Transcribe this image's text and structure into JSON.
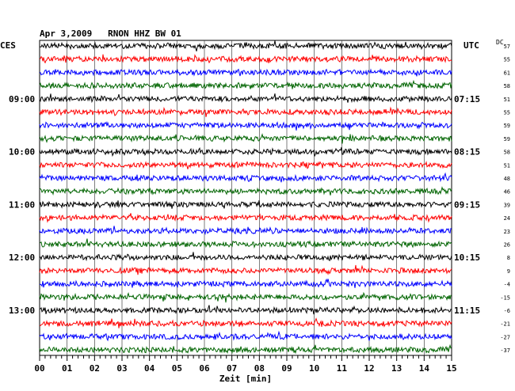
{
  "chart_data": {
    "type": "line",
    "title": "Apr 3,2009   RNON HHZ BW 01",
    "xlabel": "Zeit [min]",
    "left_label": "CES",
    "right_label": "UTC",
    "dc_label": "DC",
    "xlim": [
      0,
      15
    ],
    "x_ticks": [
      "00",
      "01",
      "02",
      "03",
      "04",
      "05",
      "06",
      "07",
      "08",
      "09",
      "10",
      "11",
      "12",
      "13",
      "14",
      "15"
    ],
    "left_hour_labels": [
      {
        "row": 4,
        "label": "09:00"
      },
      {
        "row": 8,
        "label": "10:00"
      },
      {
        "row": 12,
        "label": "11:00"
      },
      {
        "row": 16,
        "label": "12:00"
      },
      {
        "row": 20,
        "label": "13:00"
      }
    ],
    "right_hour_labels": [
      {
        "row": 4,
        "label": "07:15"
      },
      {
        "row": 8,
        "label": "08:15"
      },
      {
        "row": 12,
        "label": "09:15"
      },
      {
        "row": 16,
        "label": "10:15"
      },
      {
        "row": 20,
        "label": "11:15"
      }
    ],
    "trace_colors": [
      "#000000",
      "#ff0000",
      "#0000ff",
      "#006400"
    ],
    "dc_values": [
      "57",
      "55",
      "61",
      "58",
      "51",
      "55",
      "59",
      "59",
      "58",
      "51",
      "48",
      "46",
      "39",
      "24",
      "23",
      "26",
      "8",
      "9",
      "-4",
      "-15",
      "-6",
      "-21",
      "-27",
      "-37"
    ]
  }
}
